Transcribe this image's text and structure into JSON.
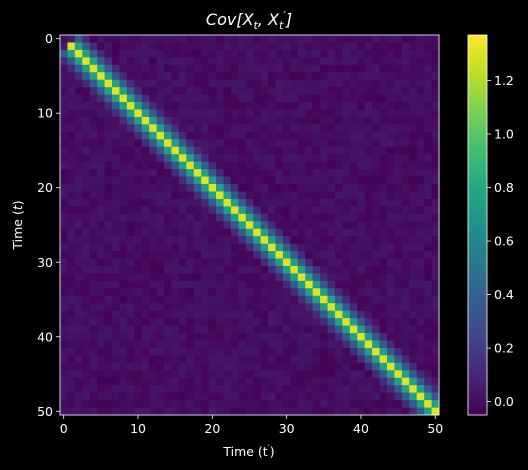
{
  "chart_data": {
    "type": "heatmap",
    "title_main": "Cov[X",
    "title_sub1": "t",
    "title_mid": ", X",
    "title_sub2": "t",
    "title_prime": "′",
    "title_end": "]",
    "xlabel_main": "Time (t",
    "xlabel_prime": "′",
    "xlabel_end": ")",
    "ylabel_main": "Time (",
    "ylabel_var": "t",
    "ylabel_end": ")",
    "xticks": [
      {
        "value": 0,
        "label": "0"
      },
      {
        "value": 10,
        "label": "10"
      },
      {
        "value": 20,
        "label": "20"
      },
      {
        "value": 30,
        "label": "30"
      },
      {
        "value": 40,
        "label": "40"
      },
      {
        "value": 50,
        "label": "50"
      }
    ],
    "yticks": [
      {
        "value": 0,
        "label": "0"
      },
      {
        "value": 10,
        "label": "10"
      },
      {
        "value": 20,
        "label": "20"
      },
      {
        "value": 30,
        "label": "30"
      },
      {
        "value": 40,
        "label": "40"
      },
      {
        "value": 50,
        "label": "50"
      }
    ],
    "x_range": [
      0,
      50
    ],
    "y_range": [
      0,
      50
    ],
    "colormap": "viridis",
    "color_range": [
      -0.05,
      1.37
    ],
    "colorbar_ticks": [
      {
        "value": 0.0,
        "label": "0.0"
      },
      {
        "value": 0.2,
        "label": "0.2"
      },
      {
        "value": 0.4,
        "label": "0.4"
      },
      {
        "value": 0.6,
        "label": "0.6"
      },
      {
        "value": 0.8,
        "label": "0.8"
      },
      {
        "value": 1.0,
        "label": "1.0"
      },
      {
        "value": 1.2,
        "label": "1.2"
      }
    ],
    "matrix_structure": {
      "size": 51,
      "diagonal_value": 1.3,
      "first_offdiagonal_value": 0.75,
      "second_offdiagonal_value": 0.35,
      "third_offdiagonal_value": 0.12,
      "background_value": 0.0,
      "diagonal_start": 1
    },
    "grid": false,
    "legend": "colorbar right"
  }
}
